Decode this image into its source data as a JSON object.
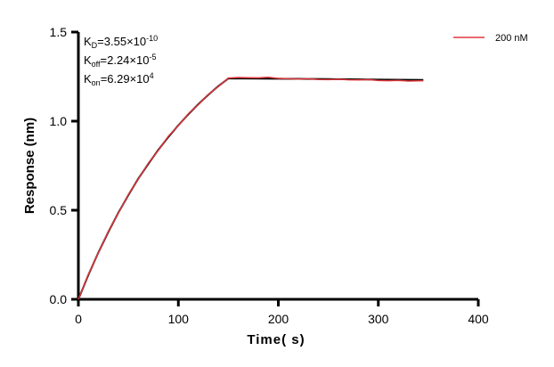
{
  "chart_data": {
    "type": "line",
    "title": "",
    "xlabel": "Time( s)",
    "ylabel": "Response (nm)",
    "xlim": [
      0,
      400
    ],
    "ylim": [
      0,
      1.5
    ],
    "xticks": [
      "0",
      "100",
      "200",
      "300",
      "400"
    ],
    "yticks": [
      "0.0",
      "0.5",
      "1.0",
      "1.5"
    ],
    "grid": false,
    "legend_placement": "top-right",
    "annotations": {
      "kd": {
        "label": "K",
        "sub": "D",
        "value": "=3.55×10",
        "exp": "-10"
      },
      "koff": {
        "label": "K",
        "sub": "off",
        "value": "=2.24×10",
        "exp": "-5"
      },
      "kon": {
        "label": "K",
        "sub": "on",
        "value": "=6.29×10",
        "exp": "4"
      }
    },
    "series": [
      {
        "name": "200 nM",
        "color": "#e0393e",
        "x": [
          0,
          10,
          20,
          30,
          40,
          50,
          60,
          70,
          80,
          90,
          100,
          110,
          120,
          130,
          140,
          150,
          160,
          170,
          180,
          190,
          200,
          210,
          220,
          230,
          240,
          250,
          260,
          270,
          280,
          290,
          300,
          310,
          320,
          330,
          340,
          345
        ],
        "y": [
          0,
          0.14,
          0.262,
          0.382,
          0.484,
          0.588,
          0.675,
          0.765,
          0.836,
          0.915,
          0.975,
          1.042,
          1.093,
          1.15,
          1.194,
          1.242,
          1.245,
          1.244,
          1.243,
          1.246,
          1.24,
          1.238,
          1.236,
          1.238,
          1.234,
          1.233,
          1.235,
          1.232,
          1.231,
          1.233,
          1.228,
          1.227,
          1.229,
          1.225,
          1.226,
          1.227
        ]
      },
      {
        "color": "#000000",
        "x": [
          0,
          10,
          20,
          30,
          40,
          50,
          60,
          70,
          80,
          90,
          100,
          110,
          120,
          130,
          140,
          150,
          200,
          250,
          300,
          345
        ],
        "y": [
          0,
          0.137,
          0.263,
          0.379,
          0.486,
          0.585,
          0.677,
          0.761,
          0.839,
          0.911,
          0.977,
          1.039,
          1.095,
          1.148,
          1.196,
          1.24,
          1.238,
          1.236,
          1.233,
          1.231
        ]
      }
    ]
  }
}
